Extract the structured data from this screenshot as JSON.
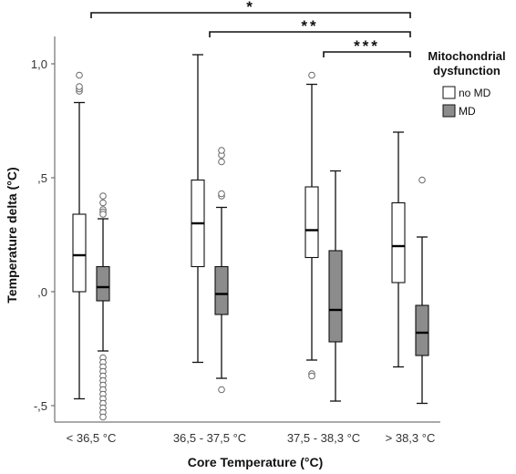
{
  "chart_data": {
    "type": "box",
    "title": "",
    "xlabel": "Core Temperature (°C)",
    "ylabel": "Temperature delta (°C)",
    "ylim": [
      -0.55,
      1.08
    ],
    "yticks": [
      {
        "value": -0.5,
        "label": "-,5"
      },
      {
        "value": 0.0,
        "label": ",0"
      },
      {
        "value": 0.5,
        "label": ",5"
      },
      {
        "value": 1.0,
        "label": "1,0"
      }
    ],
    "categories": [
      "< 36,5 °C",
      "36,5 - 37,5 °C",
      "37,5 - 38,3 °C",
      "> 38,3 °C"
    ],
    "legend": {
      "title": [
        "Mitochondrial",
        "dysfunction"
      ],
      "position": "right",
      "entries": [
        {
          "name": "no MD",
          "color": "#ffffff"
        },
        {
          "name": "MD",
          "color": "#8c8c8c"
        }
      ]
    },
    "series": [
      {
        "name": "no MD",
        "color": "#ffffff",
        "boxes": [
          {
            "whisker_low": -0.47,
            "q1": 0.0,
            "median": 0.16,
            "q3": 0.34,
            "whisker_high": 0.83,
            "outliers": [
              0.88,
              0.89,
              0.9,
              0.95
            ]
          },
          {
            "whisker_low": -0.31,
            "q1": 0.11,
            "median": 0.3,
            "q3": 0.49,
            "whisker_high": 1.04,
            "outliers": []
          },
          {
            "whisker_low": -0.3,
            "q1": 0.15,
            "median": 0.27,
            "q3": 0.46,
            "whisker_high": 0.91,
            "outliers": [
              -0.36,
              -0.37,
              0.95
            ]
          },
          {
            "whisker_low": -0.33,
            "q1": 0.04,
            "median": 0.2,
            "q3": 0.39,
            "whisker_high": 0.7,
            "outliers": []
          }
        ]
      },
      {
        "name": "MD",
        "color": "#8c8c8c",
        "boxes": [
          {
            "whisker_low": -0.26,
            "q1": -0.04,
            "median": 0.02,
            "q3": 0.11,
            "whisker_high": 0.32,
            "outliers": [
              0.42,
              0.39,
              0.36,
              0.35,
              0.34,
              -0.29,
              -0.31,
              -0.33,
              -0.35,
              -0.37,
              -0.39,
              -0.41,
              -0.43,
              -0.45,
              -0.47,
              -0.49,
              -0.51,
              -0.53,
              -0.55
            ]
          },
          {
            "whisker_low": -0.38,
            "q1": -0.1,
            "median": -0.01,
            "q3": 0.11,
            "whisker_high": 0.37,
            "outliers": [
              0.42,
              0.43,
              0.57,
              0.6,
              0.62,
              -0.43
            ]
          },
          {
            "whisker_low": -0.48,
            "q1": -0.22,
            "median": -0.08,
            "q3": 0.18,
            "whisker_high": 0.53,
            "outliers": []
          },
          {
            "whisker_low": -0.49,
            "q1": -0.28,
            "median": -0.18,
            "q3": -0.06,
            "whisker_high": 0.24,
            "outliers": [
              0.49
            ]
          }
        ]
      }
    ],
    "significance": [
      {
        "from": 0,
        "to": 3,
        "label": "*"
      },
      {
        "from": 1,
        "to": 3,
        "label": "**"
      },
      {
        "from": 2,
        "to": 3,
        "label": "***"
      }
    ]
  }
}
